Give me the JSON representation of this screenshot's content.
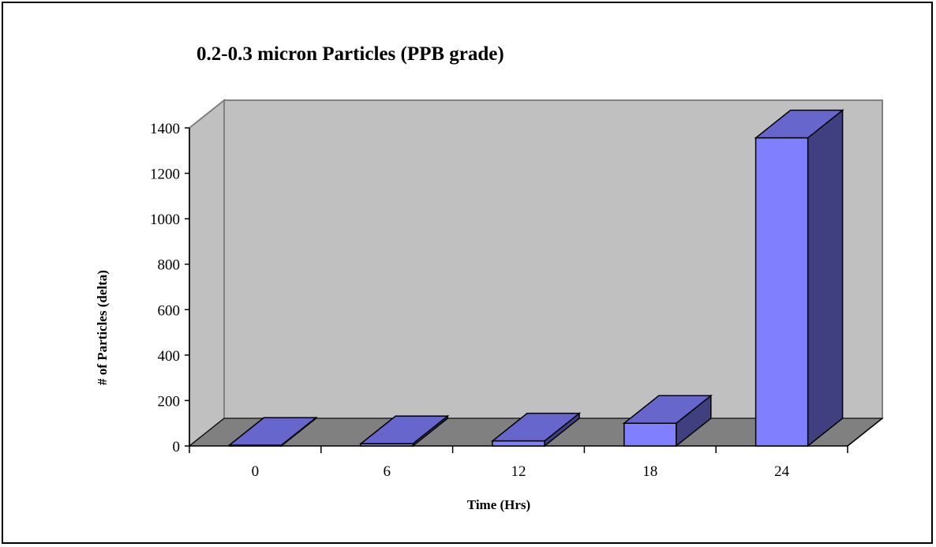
{
  "chart_data": {
    "type": "bar",
    "title": "0.2-0.3 micron Particles (PPB grade)",
    "xlabel": "Time (Hrs)",
    "ylabel": "# of Particles (delta)",
    "categories": [
      "0",
      "6",
      "12",
      "18",
      "24"
    ],
    "values": [
      3,
      10,
      22,
      100,
      1356
    ],
    "ylim": [
      0,
      1400
    ],
    "yticks": [
      0,
      200,
      400,
      600,
      800,
      1000,
      1200,
      1400
    ],
    "grid": false,
    "legend": "none",
    "style": "3d-column"
  },
  "colors": {
    "bar_front": "#8080ff",
    "bar_top": "#6666cc",
    "bar_side": "#404080",
    "wall": "#c0c0c0",
    "floor": "#808080",
    "outline": "#000000"
  }
}
